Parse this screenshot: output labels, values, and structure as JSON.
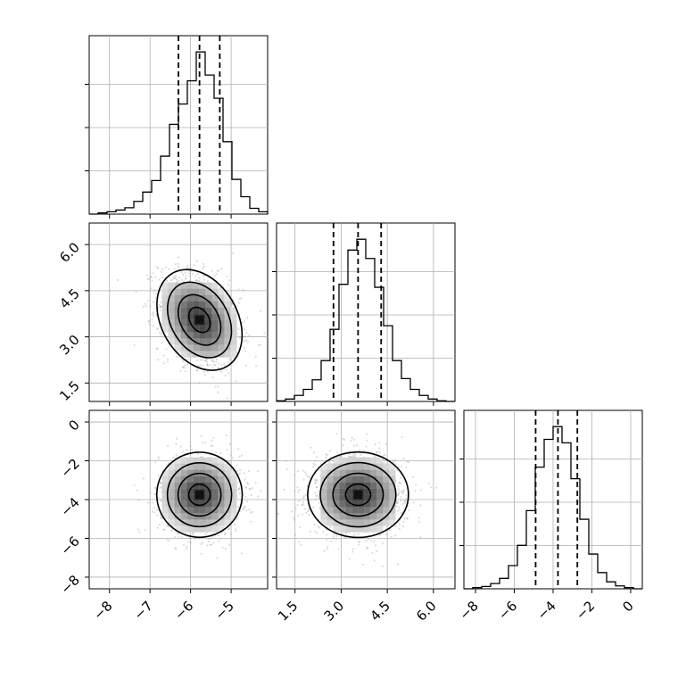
{
  "chart_data": {
    "type": "corner",
    "grid": true,
    "parameters": [
      {
        "index": 0,
        "range": [
          -8.5,
          -4.1
        ],
        "ticks": [
          -8,
          -7,
          -6,
          -5
        ],
        "tick_labels": [
          "−8",
          "−7",
          "−6",
          "−5"
        ],
        "quantiles": [
          -6.3,
          -5.78,
          -5.28
        ],
        "mean": -5.78,
        "sd": 0.5
      },
      {
        "index": 1,
        "range": [
          0.9,
          6.7
        ],
        "ticks": [
          1.5,
          3.0,
          4.5,
          6.0
        ],
        "tick_labels": [
          "1.5",
          "3.0",
          "4.5",
          "6.0"
        ],
        "quantiles": [
          2.75,
          3.55,
          4.3
        ],
        "mean": 3.55,
        "sd": 0.78
      },
      {
        "index": 2,
        "range": [
          -8.6,
          0.6
        ],
        "ticks": [
          -8,
          -6,
          -4,
          -2,
          0
        ],
        "tick_labels": [
          "−8",
          "−6",
          "−4",
          "−2",
          "0"
        ],
        "quantiles": [
          -4.9,
          -3.75,
          -2.75
        ],
        "mean": -3.75,
        "sd": 1.05
      }
    ],
    "histograms": [
      {
        "param": 0,
        "bin_edges": [
          -8.5,
          -8.28,
          -8.06,
          -7.84,
          -7.62,
          -7.4,
          -7.18,
          -6.96,
          -6.74,
          -6.52,
          -6.3,
          -6.08,
          -5.86,
          -5.64,
          -5.42,
          -5.2,
          -4.98,
          -4.76,
          -4.54,
          -4.32,
          -4.1
        ],
        "counts": [
          0,
          2,
          4,
          7,
          11,
          22,
          38,
          58,
          100,
          155,
          190,
          230,
          280,
          240,
          200,
          125,
          60,
          30,
          10,
          4
        ]
      },
      {
        "param": 1,
        "bin_edges": [
          0.9,
          1.19,
          1.48,
          1.77,
          2.06,
          2.35,
          2.64,
          2.93,
          3.22,
          3.51,
          3.8,
          4.09,
          4.38,
          4.67,
          4.96,
          5.25,
          5.54,
          5.83,
          6.12,
          6.41,
          6.7
        ],
        "counts": [
          1,
          4,
          10,
          20,
          36,
          68,
          120,
          195,
          252,
          270,
          238,
          190,
          126,
          68,
          38,
          20,
          10,
          4,
          1,
          0
        ]
      },
      {
        "param": 2,
        "bin_edges": [
          -8.6,
          -8.14,
          -7.68,
          -7.22,
          -6.76,
          -6.3,
          -5.84,
          -5.38,
          -4.92,
          -4.46,
          -4.0,
          -3.54,
          -3.08,
          -2.62,
          -2.16,
          -1.7,
          -1.24,
          -0.78,
          -0.32,
          0.14,
          0.6
        ],
        "counts": [
          0,
          2,
          4,
          9,
          18,
          40,
          75,
          135,
          210,
          258,
          280,
          252,
          190,
          120,
          60,
          28,
          12,
          5,
          2,
          0
        ]
      }
    ],
    "pairs": [
      {
        "x_param": 0,
        "y_param": 1,
        "correlation": -0.3
      },
      {
        "x_param": 0,
        "y_param": 2,
        "correlation": 0.0
      },
      {
        "x_param": 1,
        "y_param": 2,
        "correlation": 0.0
      }
    ],
    "contour_levels_sigma": [
      0.5,
      1.0,
      1.5,
      2.0
    ]
  }
}
